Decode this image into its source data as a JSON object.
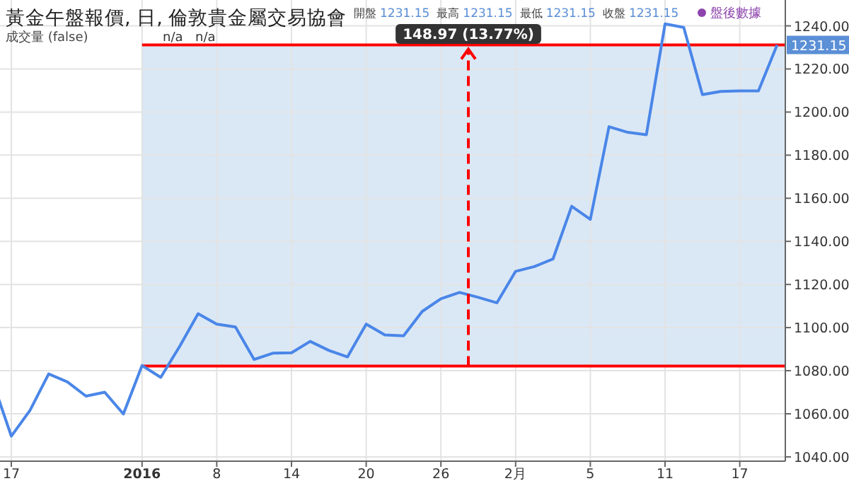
{
  "chart_data": {
    "type": "line",
    "title": "黃金午盤報價, 日, 倫敦貴金屬交易協會",
    "categories": [
      null,
      "17",
      null,
      null,
      null,
      null,
      null,
      null,
      "2016",
      null,
      null,
      null,
      "8",
      null,
      null,
      null,
      "14",
      null,
      null,
      null,
      "20",
      null,
      null,
      null,
      "26",
      null,
      null,
      null,
      "2月",
      null,
      null,
      null,
      "5",
      null,
      null,
      null,
      "11",
      null,
      null,
      null,
      "17",
      null,
      null
    ],
    "series": [
      {
        "color": "#4a86e8",
        "values": [
          1075,
          1049.6,
          1061.6,
          1078.5,
          1074.8,
          1068.2,
          1070,
          1059.9,
          1082.4,
          1076.9,
          1091.1,
          1106.4,
          1101.6,
          1100.3,
          1085.2,
          1088.1,
          1088.3,
          1093.6,
          1089.4,
          1086.4,
          1101.6,
          1096.6,
          1096.2,
          1107.5,
          1113.4,
          1116.3,
          1114,
          1111.5,
          1126.1,
          1128.3,
          1131.8,
          1156.3,
          1150.2,
          1193.2,
          1190.6,
          1189.5,
          1240.9,
          1239.3,
          1208.1,
          1209.6,
          1209.8,
          1209.8,
          1231.15
        ]
      }
    ],
    "ylim": [
      1038,
      1252
    ],
    "yticks": [
      {
        "value": 1040,
        "label": "1040.00"
      },
      {
        "value": 1060,
        "label": "1060.00"
      },
      {
        "value": 1080,
        "label": "1080.00"
      },
      {
        "value": 1100,
        "label": "1100.00"
      },
      {
        "value": 1120,
        "label": "1120.00"
      },
      {
        "value": 1140,
        "label": "1140.00"
      },
      {
        "value": 1160,
        "label": "1160.00"
      },
      {
        "value": 1180,
        "label": "1180.00"
      },
      {
        "value": 1200,
        "label": "1200.00"
      },
      {
        "value": 1220,
        "label": "1220.00"
      },
      {
        "value": 1240,
        "label": "1240.00"
      }
    ],
    "grid": true,
    "ref_lines": [
      {
        "axis": "y",
        "value": 1231.15,
        "label": "1231.15",
        "color": "#ff0000"
      },
      {
        "axis": "y",
        "value": 1082.18,
        "color": "#ff0000"
      }
    ],
    "bands": [
      {
        "axis": "y",
        "from": 1082.18,
        "to": 1231.15,
        "color": "#dae8f6"
      }
    ],
    "annotations": [
      "148.97 (13.77%)",
      "開盤",
      "1231.15",
      "最高",
      "1231.15",
      "最低",
      "1231.15",
      "收盤",
      "1231.15",
      "成交量 (false)",
      "n/a",
      "n/a",
      "盤後數據"
    ]
  }
}
